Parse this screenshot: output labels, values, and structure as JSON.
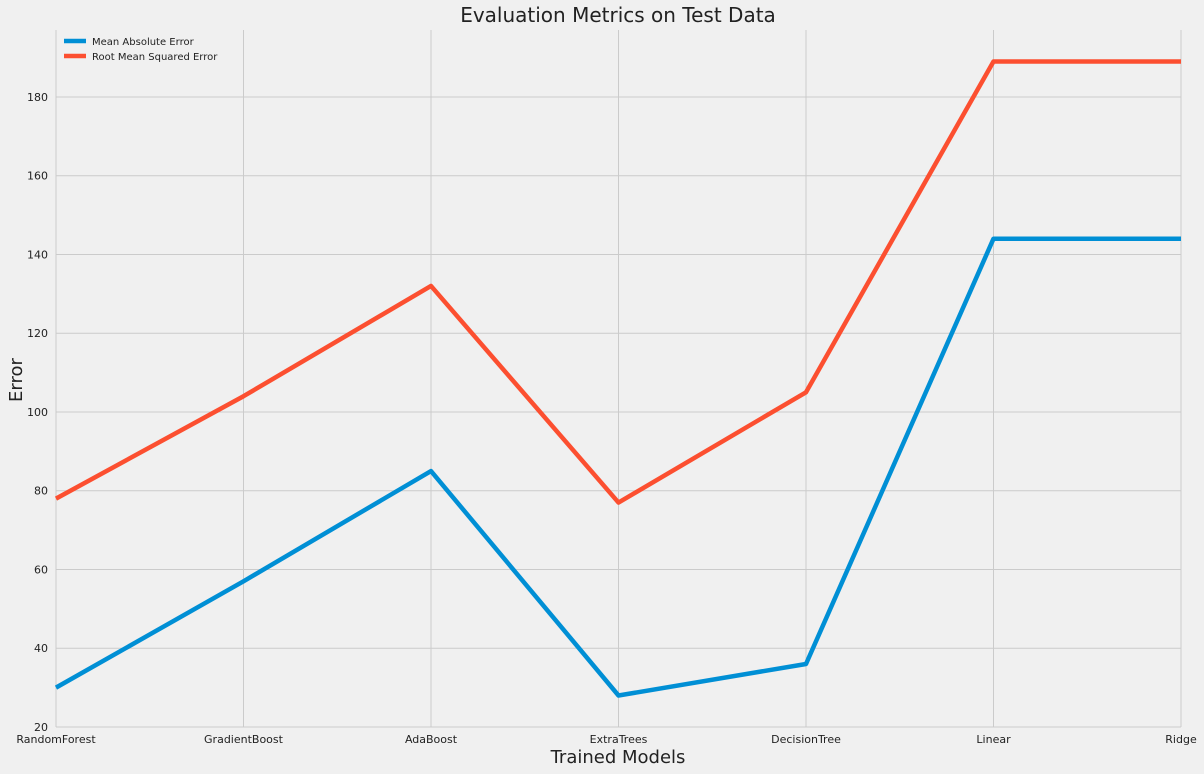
{
  "chart_data": {
    "type": "line",
    "title": "Evaluation Metrics on Test Data",
    "xlabel": "Trained Models",
    "ylabel": "Error",
    "categories": [
      "RandomForest",
      "GradientBoost",
      "AdaBoost",
      "ExtraTrees",
      "DecisionTree",
      "Linear",
      "Ridge"
    ],
    "ylim": [
      20,
      197
    ],
    "yticks": [
      20,
      40,
      60,
      80,
      100,
      120,
      140,
      160,
      180
    ],
    "grid": true,
    "legend_position": "top-left",
    "series": [
      {
        "name": "Mean Absolute Error",
        "color": "#008fd5",
        "values": [
          30,
          57,
          85,
          28,
          36,
          144,
          144
        ]
      },
      {
        "name": "Root Mean Squared Error",
        "color": "#fc4f30",
        "values": [
          78,
          104,
          132,
          77,
          105,
          189,
          189
        ]
      }
    ]
  }
}
